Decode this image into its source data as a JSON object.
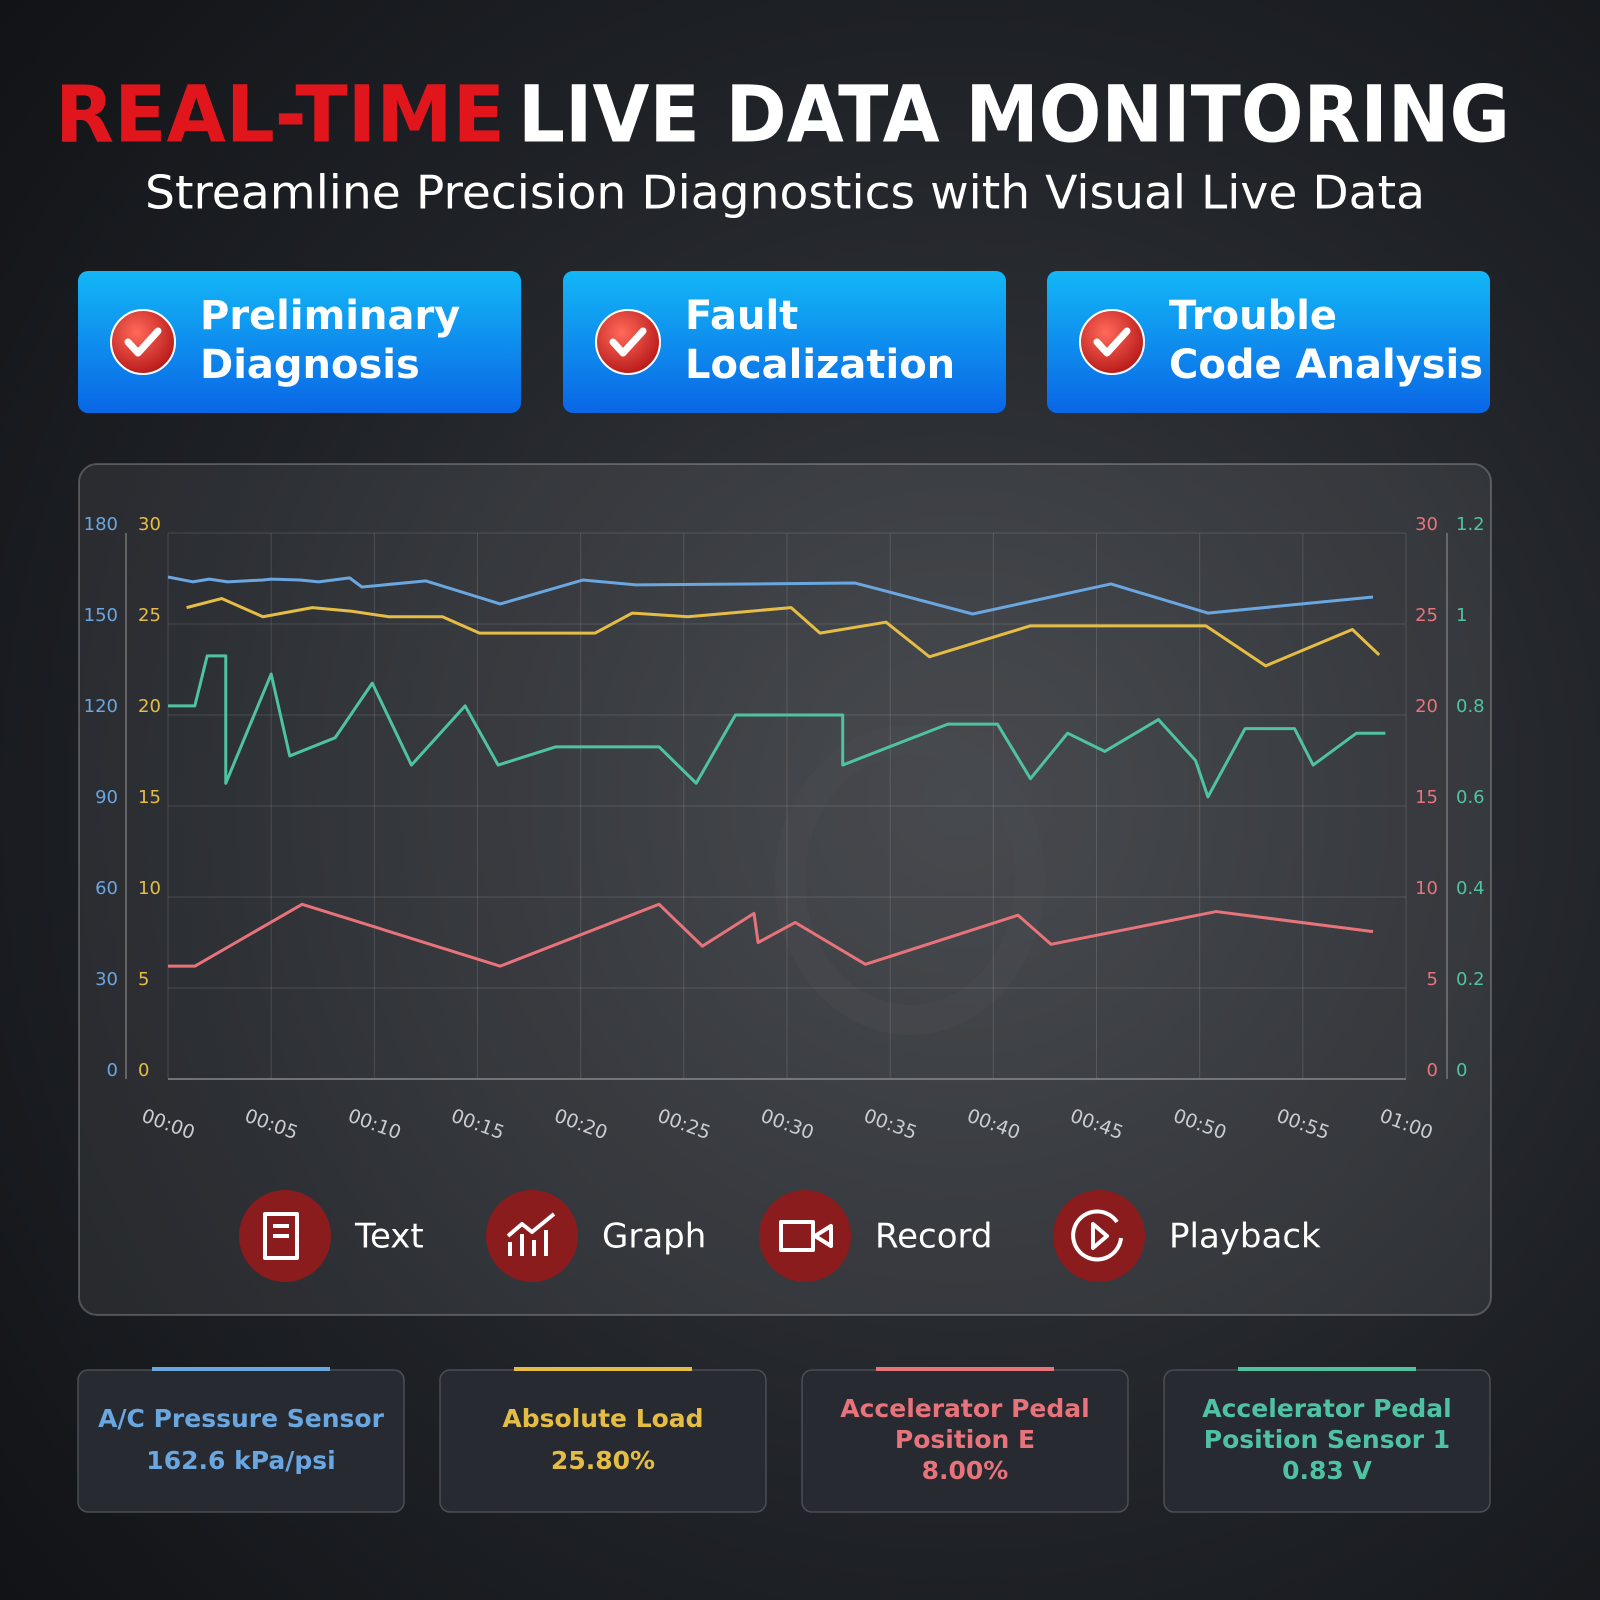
{
  "header": {
    "title_red": "REAL-TIME",
    "title_white": "LIVE DATA MONITORING",
    "subtitle": "Streamline Precision Diagnostics with Visual Live Data"
  },
  "features": [
    {
      "lines": [
        "Preliminary",
        "Diagnosis"
      ]
    },
    {
      "lines": [
        "Fault",
        "Localization"
      ]
    },
    {
      "lines": [
        "Trouble",
        "Code Analysis"
      ]
    }
  ],
  "chart_data": {
    "type": "line",
    "grid": true,
    "xlim": [
      0,
      60
    ],
    "xticks": [
      {
        "value": 0,
        "label": "00:00"
      },
      {
        "value": 5,
        "label": "00:05"
      },
      {
        "value": 10,
        "label": "00:10"
      },
      {
        "value": 15,
        "label": "00:15"
      },
      {
        "value": 20,
        "label": "00:20"
      },
      {
        "value": 25,
        "label": "00:25"
      },
      {
        "value": 30,
        "label": "00:30"
      },
      {
        "value": 35,
        "label": "00:35"
      },
      {
        "value": 40,
        "label": "00:40"
      },
      {
        "value": 45,
        "label": "00:45"
      },
      {
        "value": 50,
        "label": "00:50"
      },
      {
        "value": 55,
        "label": "00:55"
      },
      {
        "value": 60,
        "label": "01:00"
      }
    ],
    "y_axes": [
      {
        "side": "left",
        "color": "#6aa6e0",
        "ylim": [
          0,
          180
        ],
        "yticks": [
          0,
          30,
          60,
          90,
          120,
          150,
          180
        ]
      },
      {
        "side": "left",
        "color": "#e5bd45",
        "ylim": [
          0,
          30
        ],
        "yticks": [
          0,
          5,
          10,
          15,
          20,
          25,
          30
        ]
      },
      {
        "side": "right",
        "color": "#e8737a",
        "ylim": [
          0,
          30
        ],
        "yticks": [
          0,
          5,
          10,
          15,
          20,
          25,
          30
        ]
      },
      {
        "side": "right",
        "color": "#4fc3a1",
        "ylim": [
          0,
          1.2
        ],
        "yticks": [
          0,
          0.2,
          0.4,
          0.6,
          0.8,
          1,
          1.2
        ]
      }
    ],
    "series": [
      {
        "name": [
          "A/C Pressure Sensor"
        ],
        "reading": "162.6 kPa/psi",
        "color": "#6aa6e0",
        "axis": 0,
        "x": [
          0,
          1.2,
          2.0,
          2.9,
          4.6,
          5.0,
          6.4,
          7.3,
          8.8,
          9.4,
          12.5,
          16.1,
          20.1,
          22.7,
          33.3,
          39.0,
          45.7,
          50.4,
          58.4
        ],
        "values": [
          165.5,
          163.9,
          164.8,
          163.9,
          164.5,
          164.8,
          164.5,
          163.9,
          165.2,
          162.2,
          164.2,
          156.6,
          164.5,
          162.9,
          163.5,
          153.3,
          163.2,
          153.6,
          158.9
        ]
      },
      {
        "name": [
          "Absolute Load"
        ],
        "reading": "25.80%",
        "color": "#e5bd45",
        "axis": 1,
        "x": [
          0.9,
          2.6,
          4.6,
          7.0,
          8.9,
          10.7,
          13.3,
          15.1,
          20.7,
          22.5,
          25.2,
          30.2,
          31.6,
          34.8,
          36.9,
          41.8,
          50.3,
          53.2,
          57.4,
          58.7
        ],
        "values": [
          25.9,
          26.4,
          25.4,
          25.9,
          25.7,
          25.4,
          25.4,
          24.5,
          24.5,
          25.6,
          25.4,
          25.9,
          24.5,
          25.1,
          23.2,
          24.9,
          24.9,
          22.7,
          24.7,
          23.3
        ]
      },
      {
        "name": [
          "Accelerator Pedal",
          "Position E"
        ],
        "reading": "8.00%",
        "color": "#e8737a",
        "axis": 2,
        "x": [
          0,
          1.3,
          6.5,
          16.1,
          23.8,
          25.9,
          28.4,
          28.6,
          30.4,
          33.8,
          41.2,
          42.8,
          50.8,
          58.4
        ],
        "values": [
          6.2,
          6.2,
          9.6,
          6.2,
          9.6,
          7.3,
          9.1,
          7.5,
          8.6,
          6.3,
          9.0,
          7.4,
          9.2,
          8.1
        ]
      },
      {
        "name": [
          "Accelerator Pedal",
          "Position Sensor 1"
        ],
        "reading": "0.83 V",
        "color": "#4fc3a1",
        "axis": 3,
        "x": [
          0,
          1.3,
          1.9,
          2.8,
          2.8,
          5.0,
          5.9,
          8.1,
          9.9,
          11.8,
          14.4,
          16.0,
          18.8,
          23.8,
          25.6,
          27.5,
          32.7,
          32.7,
          37.8,
          40.2,
          41.8,
          43.6,
          45.4,
          48.0,
          49.8,
          50.4,
          52.2,
          54.6,
          55.5,
          57.6,
          59.0
        ],
        "values": [
          0.82,
          0.82,
          0.93,
          0.93,
          0.65,
          0.89,
          0.71,
          0.75,
          0.87,
          0.69,
          0.82,
          0.69,
          0.73,
          0.73,
          0.65,
          0.8,
          0.8,
          0.69,
          0.78,
          0.78,
          0.66,
          0.76,
          0.72,
          0.79,
          0.7,
          0.62,
          0.77,
          0.77,
          0.69,
          0.76,
          0.76
        ]
      }
    ]
  },
  "buttons": [
    "Text",
    "Graph",
    "Record",
    "Playback"
  ]
}
